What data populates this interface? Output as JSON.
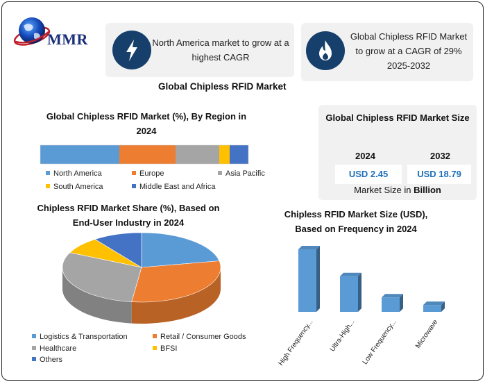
{
  "header": {
    "brand": "MMR",
    "highlight_left": "North America market to grow at a highest CAGR",
    "highlight_right": "Global Chipless RFID Market to grow at a CAGR of 29% 2025-2032",
    "icon_left": "lightning-bolt-icon",
    "icon_right": "flame-icon",
    "title": "Global Chipless RFID Market"
  },
  "market_size": {
    "title": "Global Chipless RFID Market Size",
    "year_a": "2024",
    "value_a": "USD 2.45",
    "year_b": "2032",
    "value_b": "USD 18.79",
    "note_prefix": "Market Size in ",
    "note_emphasis": "Billion"
  },
  "chart_data": [
    {
      "type": "bar",
      "orientation": "horizontal-stacked",
      "title": "Global Chipless RFID Market (%), By Region in 2024",
      "series": [
        {
          "name": "North America",
          "value": 38,
          "color": "#5b9bd5"
        },
        {
          "name": "Europe",
          "value": 27,
          "color": "#ed7d31"
        },
        {
          "name": "Asia Pacific",
          "value": 21,
          "color": "#a5a5a5"
        },
        {
          "name": "South America",
          "value": 5,
          "color": "#ffc000"
        },
        {
          "name": "Middle East and Africa",
          "value": 9,
          "color": "#4472c4"
        }
      ],
      "legend_position": "bottom"
    },
    {
      "type": "pie",
      "style": "3d",
      "title": "Chipless RFID Market Share (%), Based on End-User Industry in 2024",
      "series": [
        {
          "name": "Logistics & Transportation",
          "value": 22,
          "color": "#5b9bd5"
        },
        {
          "name": "Retail / Consumer Goods",
          "value": 30,
          "color": "#ed7d31"
        },
        {
          "name": "Healthcare",
          "value": 30,
          "color": "#a5a5a5"
        },
        {
          "name": "BFSI",
          "value": 8,
          "color": "#ffc000"
        },
        {
          "name": "Others",
          "value": 10,
          "color": "#4472c4"
        }
      ],
      "legend_position": "bottom"
    },
    {
      "type": "bar",
      "style": "3d",
      "title": "Chipless RFID Market Size (USD), Based on Frequency in 2024",
      "categories": [
        "High Frequency...",
        "Ultra-High...",
        "Low Frequency...",
        "Microwave"
      ],
      "values": [
        100,
        57,
        23,
        11
      ],
      "color": "#5b9bd5",
      "axes_shown": false,
      "grid": false
    }
  ]
}
